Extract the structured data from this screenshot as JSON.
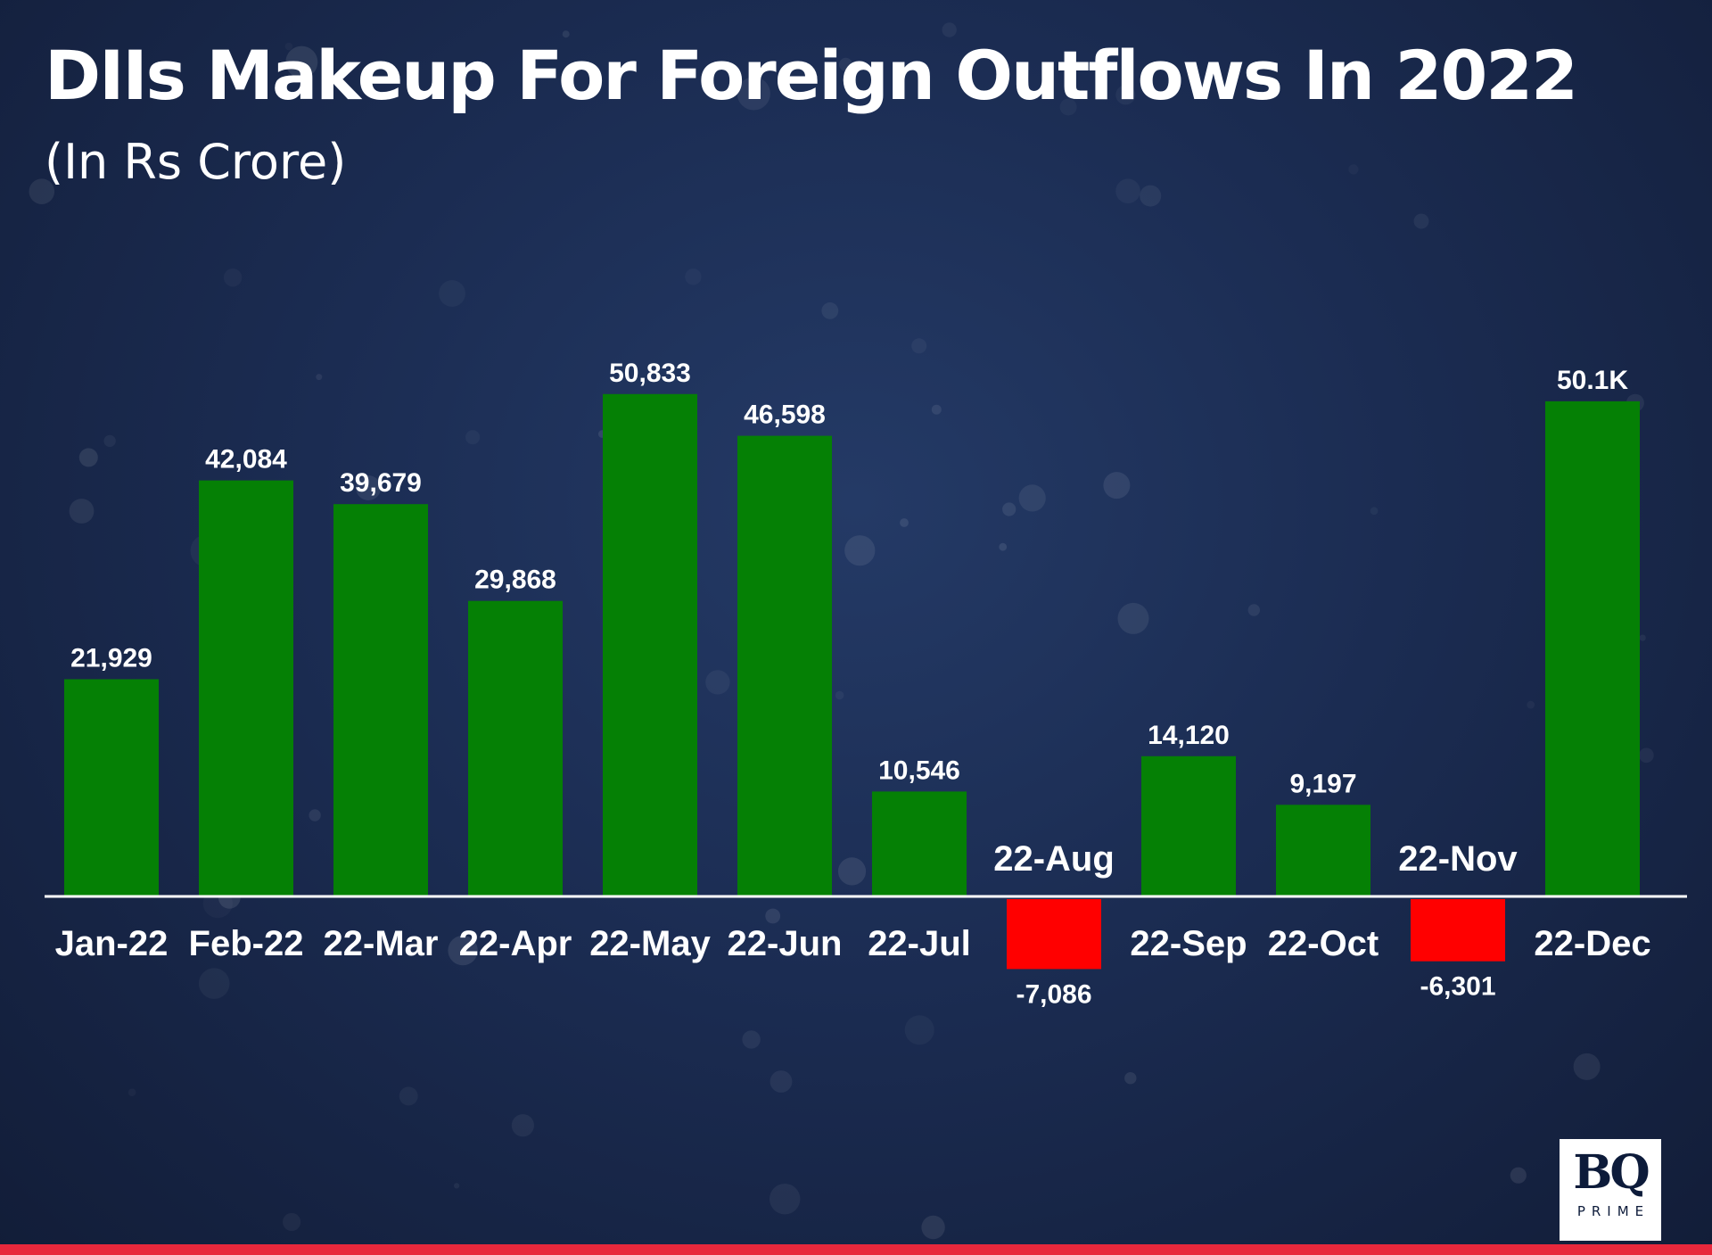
{
  "title": "DIIs Makeup For Foreign Outflows In 2022",
  "subtitle": "(In Rs Crore)",
  "logo": {
    "mark": "BQ",
    "sub": "PRIME"
  },
  "colors": {
    "positive": "#058005",
    "negative": "#ff0000",
    "baseline": "#ffffff",
    "accent_stripe": "#e8283c"
  },
  "chart_data": {
    "type": "bar",
    "title": "DIIs Makeup For Foreign Outflows In 2022",
    "subtitle": "(In Rs Crore)",
    "categories": [
      "Jan-22",
      "Feb-22",
      "22-Mar",
      "22-Apr",
      "22-May",
      "22-Jun",
      "22-Jul",
      "22-Aug",
      "22-Sep",
      "22-Oct",
      "22-Nov",
      "22-Dec"
    ],
    "values": [
      21929,
      42084,
      39679,
      29868,
      50833,
      46598,
      10546,
      -7086,
      14120,
      9197,
      -6301,
      50100
    ],
    "data_labels": [
      "21,929",
      "42,084",
      "39,679",
      "29,868",
      "50,833",
      "46,598",
      "10,546",
      "-7,086",
      "14,120",
      "9,197",
      "-6,301",
      "50.1K"
    ],
    "xlabel": "",
    "ylabel": "",
    "grid": false,
    "legend": "none"
  }
}
